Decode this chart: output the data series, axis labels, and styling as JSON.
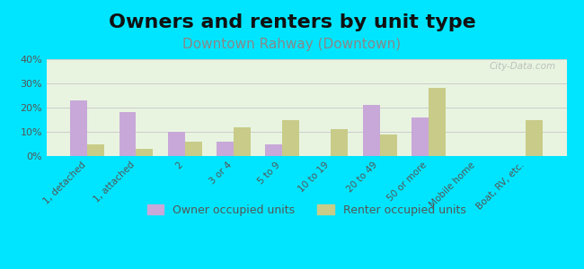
{
  "title": "Owners and renters by unit type",
  "subtitle": "Downtown Rahway (Downtown)",
  "categories": [
    "1, detached",
    "1, attached",
    "2",
    "3 or 4",
    "5 to 9",
    "10 to 19",
    "20 to 49",
    "50 or more",
    "Mobile home",
    "Boat, RV, etc."
  ],
  "owner_values": [
    23,
    18,
    10,
    6,
    5,
    0,
    21,
    16,
    0,
    0
  ],
  "renter_values": [
    5,
    3,
    6,
    12,
    15,
    11,
    9,
    28,
    0,
    15
  ],
  "owner_color": "#c8a8d8",
  "renter_color": "#c8cc88",
  "background_color": "#00e5ff",
  "plot_bg_top": "#e8f5e0",
  "plot_bg_bottom": "#f8fff0",
  "ylim": [
    0,
    40
  ],
  "yticks": [
    0,
    10,
    20,
    30,
    40
  ],
  "ytick_labels": [
    "0%",
    "10%",
    "20%",
    "30%",
    "40%"
  ],
  "bar_width": 0.35,
  "watermark": "City-Data.com",
  "title_fontsize": 16,
  "subtitle_fontsize": 11,
  "legend_labels": [
    "Owner occupied units",
    "Renter occupied units"
  ]
}
